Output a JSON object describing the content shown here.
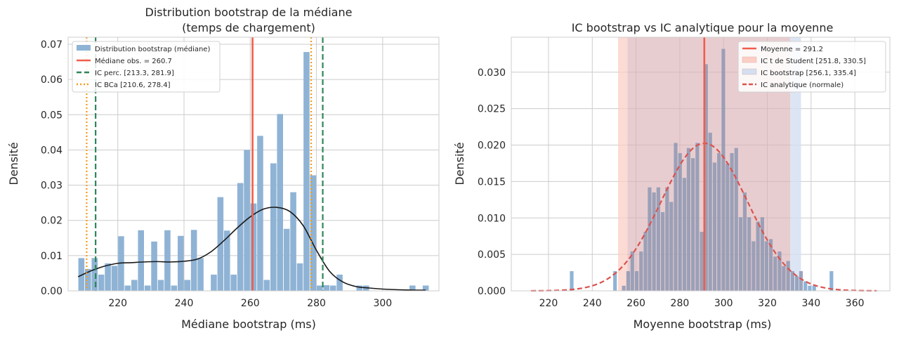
{
  "colors": {
    "hist_fill": "#8fb3d5",
    "median_line": "#f05d4a",
    "ci_perc": "#2e8659",
    "ci_bca": "#f39c1a",
    "kde": "#1a1a1a",
    "mean_line": "#f05d4a",
    "student_band": "#fbcfc6",
    "boot_band": "#d3dff1",
    "overlap_band": "#dcb2b7",
    "normal_curve": "#d9534f",
    "grid": "#cccccc",
    "axes_edge": "#cccccc"
  },
  "chart_data": [
    {
      "type": "bar",
      "title": "Distribution bootstrap de la médiane\n(temps de chargement)",
      "xlabel": "Médiane bootstrap (ms)",
      "ylabel": "Densité",
      "xlim": [
        205,
        317
      ],
      "ylim": [
        0,
        0.072
      ],
      "xticks": [
        220,
        240,
        260,
        280,
        300
      ],
      "yticks": [
        0.0,
        0.01,
        0.02,
        0.03,
        0.04,
        0.05,
        0.06,
        0.07
      ],
      "ytick_labels": [
        "0.00",
        "0.01",
        "0.02",
        "0.03",
        "0.04",
        "0.05",
        "0.06",
        "0.07"
      ],
      "grid": true,
      "legend_position": "top-left",
      "bin_width": 2.03,
      "histogram": [
        {
          "x": 209,
          "v": 0.0093
        },
        {
          "x": 211,
          "v": 0.0062
        },
        {
          "x": 213,
          "v": 0.0093
        },
        {
          "x": 215,
          "v": 0.0046
        },
        {
          "x": 217,
          "v": 0.0078
        },
        {
          "x": 219,
          "v": 0.0071
        },
        {
          "x": 221,
          "v": 0.0155
        },
        {
          "x": 223,
          "v": 0.0015
        },
        {
          "x": 225,
          "v": 0.0031
        },
        {
          "x": 227,
          "v": 0.0172
        },
        {
          "x": 229,
          "v": 0.0015
        },
        {
          "x": 231,
          "v": 0.014
        },
        {
          "x": 233,
          "v": 0.0031
        },
        {
          "x": 235,
          "v": 0.0172
        },
        {
          "x": 237,
          "v": 0.0015
        },
        {
          "x": 239,
          "v": 0.0156
        },
        {
          "x": 241,
          "v": 0.0031
        },
        {
          "x": 243,
          "v": 0.0173
        },
        {
          "x": 245,
          "v": 0.0093
        },
        {
          "x": 249,
          "v": 0.0046
        },
        {
          "x": 251,
          "v": 0.0266
        },
        {
          "x": 253,
          "v": 0.0171
        },
        {
          "x": 255,
          "v": 0.0046
        },
        {
          "x": 257,
          "v": 0.0306
        },
        {
          "x": 259,
          "v": 0.04
        },
        {
          "x": 261,
          "v": 0.0248
        },
        {
          "x": 263,
          "v": 0.044
        },
        {
          "x": 265,
          "v": 0.0031
        },
        {
          "x": 267,
          "v": 0.0362
        },
        {
          "x": 269,
          "v": 0.0502
        },
        {
          "x": 271,
          "v": 0.0176
        },
        {
          "x": 273,
          "v": 0.028
        },
        {
          "x": 275,
          "v": 0.0078
        },
        {
          "x": 277,
          "v": 0.0678
        },
        {
          "x": 279,
          "v": 0.0328
        },
        {
          "x": 281,
          "v": 0.0015
        },
        {
          "x": 283,
          "v": 0.0016
        },
        {
          "x": 285,
          "v": 0.0015
        },
        {
          "x": 287,
          "v": 0.0046
        },
        {
          "x": 293,
          "v": 0.0015
        },
        {
          "x": 295,
          "v": 0.0015
        },
        {
          "x": 309,
          "v": 0.0015
        },
        {
          "x": 313,
          "v": 0.0015
        }
      ],
      "kde": {
        "x": [
          208,
          212,
          216,
          220,
          224,
          228,
          232,
          236,
          240,
          244,
          248,
          252,
          256,
          260,
          264,
          268,
          272,
          276,
          280,
          284,
          288,
          292,
          296,
          300,
          305,
          310,
          313
        ],
        "y": [
          0.004,
          0.0057,
          0.007,
          0.0078,
          0.008,
          0.0082,
          0.0083,
          0.0082,
          0.0084,
          0.009,
          0.011,
          0.0142,
          0.0178,
          0.021,
          0.0232,
          0.0237,
          0.0225,
          0.0185,
          0.0115,
          0.0055,
          0.0025,
          0.0012,
          0.0008,
          0.0005,
          0.0003,
          0.0002,
          0.0002
        ]
      },
      "vlines": [
        {
          "id": "median",
          "x": 260.7,
          "style": "solid"
        },
        {
          "id": "ci_perc_low",
          "x": 213.3,
          "style": "dashed"
        },
        {
          "id": "ci_perc_high",
          "x": 281.9,
          "style": "dashed"
        },
        {
          "id": "ci_bca_low",
          "x": 210.6,
          "style": "dotted"
        },
        {
          "id": "ci_bca_high",
          "x": 278.4,
          "style": "dotted"
        }
      ],
      "legend": [
        {
          "label": "Distribution bootstrap (médiane)",
          "kind": "patch",
          "color_key": "hist_fill"
        },
        {
          "label": "Médiane obs. = 260.7",
          "kind": "line",
          "color_key": "median_line",
          "dash": ""
        },
        {
          "label": "IC perc. [213.3, 281.9]",
          "kind": "line",
          "color_key": "ci_perc",
          "dash": "7,4"
        },
        {
          "label": "IC BCa [210.6, 278.4]",
          "kind": "line",
          "color_key": "ci_bca",
          "dash": "2,3"
        }
      ]
    },
    {
      "type": "bar",
      "title": "IC bootstrap vs IC analytique pour la moyenne",
      "xlabel": "Moyenne bootstrap (ms)",
      "ylabel": "Densité",
      "xlim": [
        203,
        376
      ],
      "ylim": [
        0,
        0.0348
      ],
      "xticks": [
        220,
        240,
        260,
        280,
        300,
        320,
        340,
        360
      ],
      "yticks": [
        0.0,
        0.005,
        0.01,
        0.015,
        0.02,
        0.025,
        0.03
      ],
      "ytick_labels": [
        "0.000",
        "0.005",
        "0.010",
        "0.015",
        "0.020",
        "0.025",
        "0.030"
      ],
      "grid": true,
      "legend_position": "top-right",
      "bin_width": 1.98,
      "histogram": [
        {
          "x": 230.6,
          "v": 0.0027
        },
        {
          "x": 250.4,
          "v": 0.0027
        },
        {
          "x": 254.4,
          "v": 0.0007
        },
        {
          "x": 256.4,
          "v": 0.0027
        },
        {
          "x": 258.3,
          "v": 0.0054
        },
        {
          "x": 260.3,
          "v": 0.0027
        },
        {
          "x": 262.3,
          "v": 0.0054
        },
        {
          "x": 264.3,
          "v": 0.0081
        },
        {
          "x": 266.2,
          "v": 0.0142
        },
        {
          "x": 268.2,
          "v": 0.0135
        },
        {
          "x": 270.2,
          "v": 0.0142
        },
        {
          "x": 272.2,
          "v": 0.0108
        },
        {
          "x": 274.2,
          "v": 0.0142
        },
        {
          "x": 276.1,
          "v": 0.0122
        },
        {
          "x": 278.1,
          "v": 0.0203
        },
        {
          "x": 280.1,
          "v": 0.0189
        },
        {
          "x": 282.1,
          "v": 0.0155
        },
        {
          "x": 284.0,
          "v": 0.0196
        },
        {
          "x": 286.0,
          "v": 0.0182
        },
        {
          "x": 288.0,
          "v": 0.0203
        },
        {
          "x": 290.0,
          "v": 0.0081
        },
        {
          "x": 292.0,
          "v": 0.0311
        },
        {
          "x": 293.9,
          "v": 0.0217
        },
        {
          "x": 295.9,
          "v": 0.0176
        },
        {
          "x": 297.9,
          "v": 0.0189
        },
        {
          "x": 299.9,
          "v": 0.0332
        },
        {
          "x": 301.8,
          "v": 0.0175
        },
        {
          "x": 303.8,
          "v": 0.0189
        },
        {
          "x": 305.8,
          "v": 0.0196
        },
        {
          "x": 307.8,
          "v": 0.0101
        },
        {
          "x": 309.7,
          "v": 0.0135
        },
        {
          "x": 311.7,
          "v": 0.0101
        },
        {
          "x": 313.7,
          "v": 0.0068
        },
        {
          "x": 315.7,
          "v": 0.0095
        },
        {
          "x": 317.7,
          "v": 0.0101
        },
        {
          "x": 319.6,
          "v": 0.0068
        },
        {
          "x": 321.6,
          "v": 0.0071
        },
        {
          "x": 323.6,
          "v": 0.0047
        },
        {
          "x": 325.6,
          "v": 0.0054
        },
        {
          "x": 327.5,
          "v": 0.0034
        },
        {
          "x": 329.5,
          "v": 0.0041
        },
        {
          "x": 331.5,
          "v": 0.0027
        },
        {
          "x": 333.5,
          "v": 0.002
        },
        {
          "x": 335.4,
          "v": 0.0027
        },
        {
          "x": 337.4,
          "v": 0.0013
        },
        {
          "x": 339.4,
          "v": 0.0007
        },
        {
          "x": 341.4,
          "v": 0.0007
        },
        {
          "x": 349.3,
          "v": 0.0027
        }
      ],
      "normal_curve": {
        "mean": 291.2,
        "sd": 19.7,
        "x_range": [
          212,
          370
        ]
      },
      "bands": [
        {
          "id": "student",
          "low": 251.8,
          "high": 330.5
        },
        {
          "id": "bootstrap",
          "low": 256.1,
          "high": 335.4
        }
      ],
      "vlines": [
        {
          "id": "mean",
          "x": 291.2,
          "style": "solid"
        }
      ],
      "legend": [
        {
          "label": "Moyenne = 291.2",
          "kind": "line",
          "color_key": "mean_line",
          "dash": ""
        },
        {
          "label": "IC t de Student [251.8, 330.5]",
          "kind": "patch",
          "color_key": "student_band"
        },
        {
          "label": "IC bootstrap [256.1, 335.4]",
          "kind": "patch",
          "color_key": "boot_band"
        },
        {
          "label": "IC analytique (normale)",
          "kind": "line",
          "color_key": "normal_curve",
          "dash": "6,3"
        }
      ]
    }
  ]
}
